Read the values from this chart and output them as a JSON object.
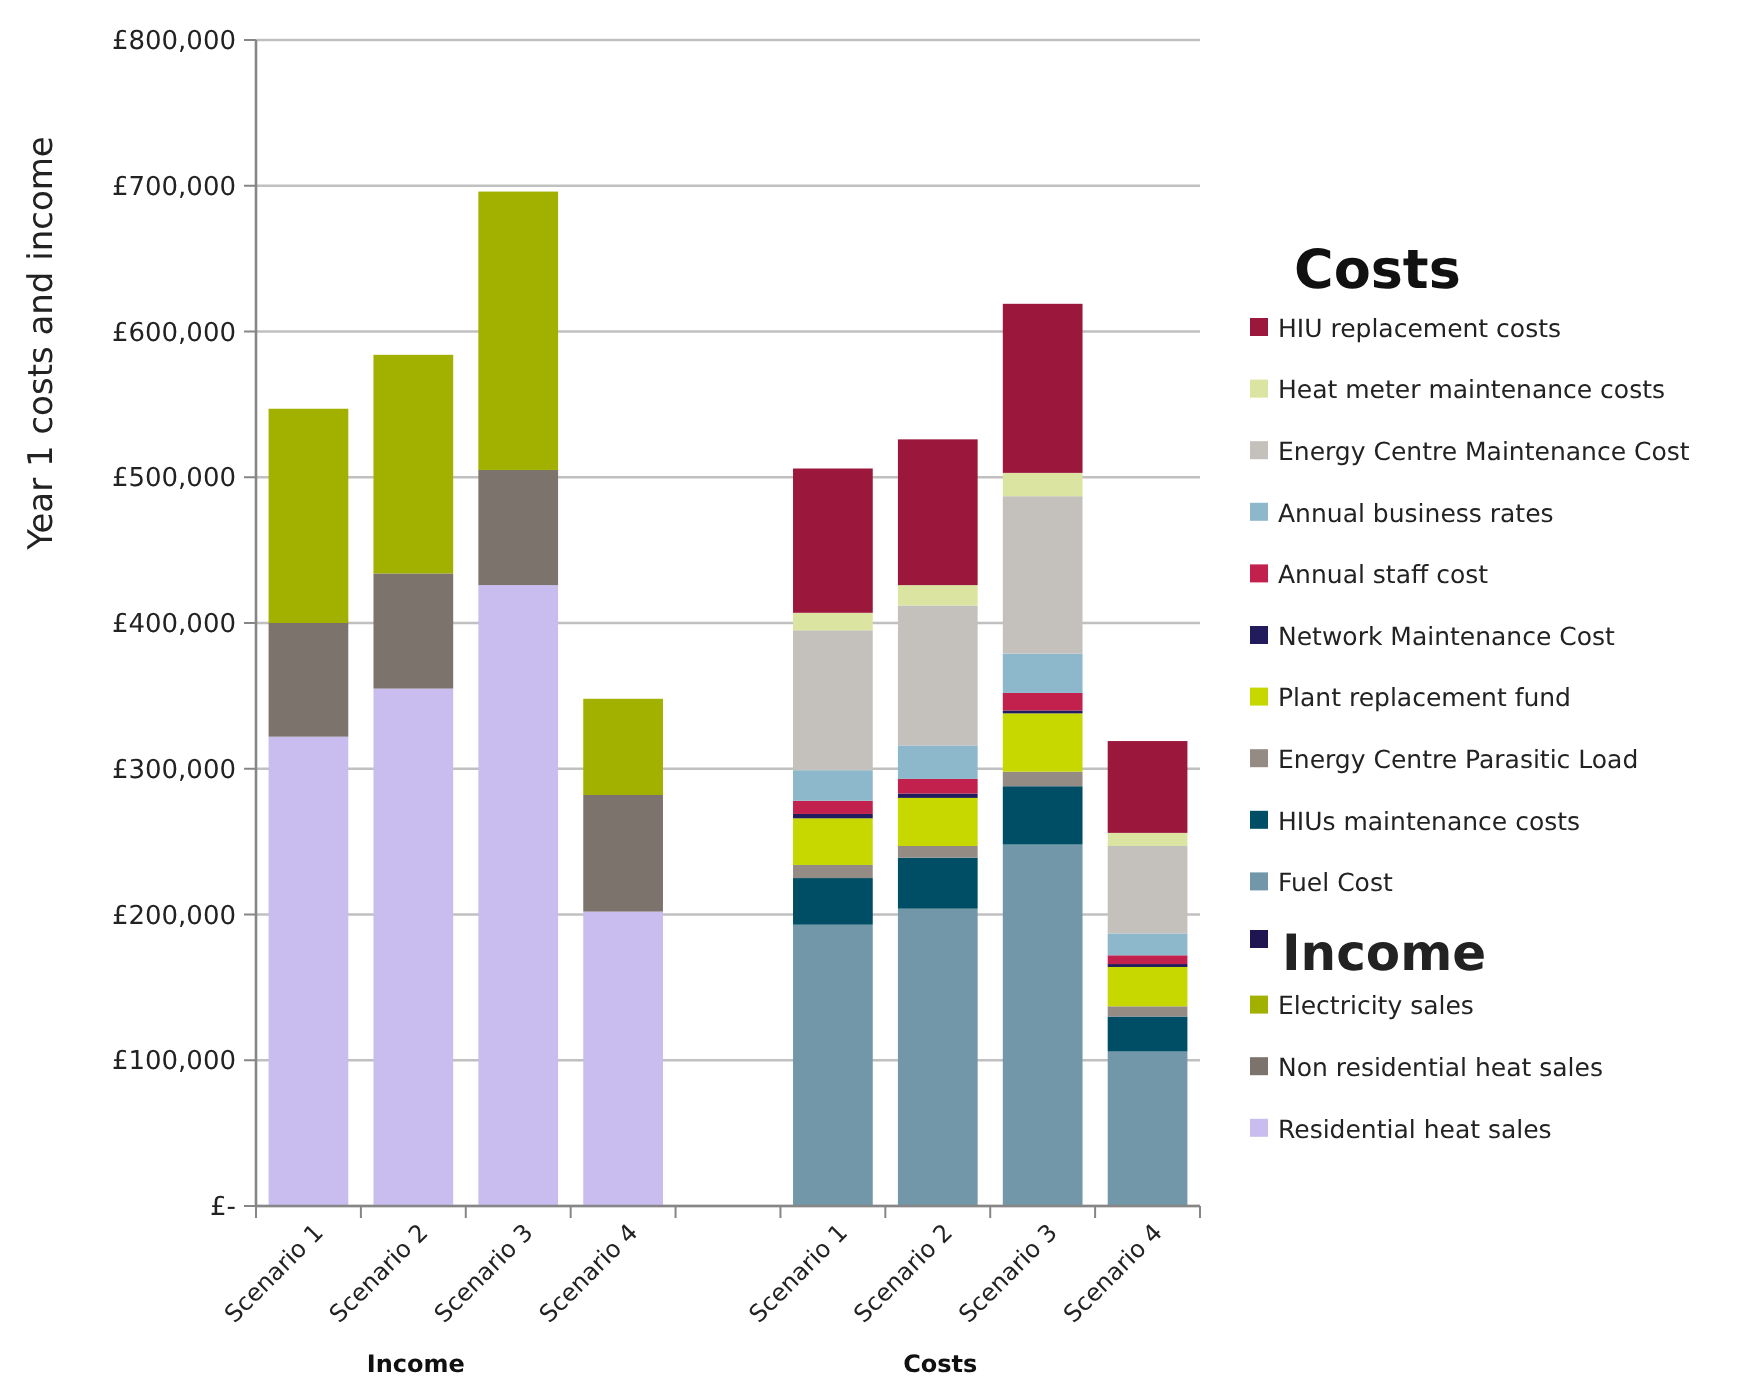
{
  "chart_data": {
    "type": "bar",
    "stacked": true,
    "ylabel": "Year 1 costs and income",
    "legend_title": "Costs",
    "legend": "right",
    "grid": "y",
    "categories": [
      "Scenario 1",
      "Scenario 2",
      "Scenario 3",
      "Scenario 4",
      null,
      "Scenario 1",
      "Scenario 2",
      "Scenario 3",
      "Scenario 4"
    ],
    "ylim": [
      0,
      800000
    ],
    "yticks": [
      {
        "value": 0,
        "label": "£-"
      },
      {
        "value": 100000,
        "label": "£100,000"
      },
      {
        "value": 200000,
        "label": "£200,000"
      },
      {
        "value": 300000,
        "label": "£300,000"
      },
      {
        "value": 400000,
        "label": "£400,000"
      },
      {
        "value": 500000,
        "label": "£500,000"
      },
      {
        "value": 600000,
        "label": "£600,000"
      },
      {
        "value": 700000,
        "label": "£700,000"
      },
      {
        "value": 800000,
        "label": "£800,000"
      }
    ],
    "annotations": [
      "Income",
      "Costs"
    ],
    "series": [
      {
        "name": "Residential heat sales",
        "color": "#c9bdf0",
        "values": [
          322000,
          355000,
          426000,
          202000,
          null,
          null,
          null,
          null,
          null
        ]
      },
      {
        "name": "Non residential heat sales",
        "color": "#7d736d",
        "values": [
          78000,
          79000,
          79000,
          80000,
          null,
          null,
          null,
          null,
          null
        ]
      },
      {
        "name": "Electricity sales",
        "color": "#a2b000",
        "values": [
          147000,
          150000,
          191000,
          66000,
          null,
          null,
          null,
          null,
          null
        ]
      },
      {
        "name": "Income",
        "color": "#1f1651",
        "values": [
          null,
          null,
          null,
          null,
          null,
          null,
          null,
          null,
          null
        ]
      },
      {
        "name": "Fuel Cost",
        "color": "#7297a8",
        "values": [
          null,
          null,
          null,
          null,
          null,
          193000,
          204000,
          248000,
          106000
        ]
      },
      {
        "name": "HIUs maintenance costs",
        "color": "#004d66",
        "values": [
          null,
          null,
          null,
          null,
          null,
          32000,
          35000,
          40000,
          24000
        ]
      },
      {
        "name": "Energy Centre Parasitic Load",
        "color": "#948b85",
        "values": [
          null,
          null,
          null,
          null,
          null,
          9000,
          8000,
          10000,
          7000
        ]
      },
      {
        "name": "Plant replacement fund",
        "color": "#c6d800",
        "values": [
          null,
          null,
          null,
          null,
          null,
          32000,
          33000,
          40000,
          27000
        ]
      },
      {
        "name": "Network Maintenance Cost",
        "color": "#221c5c",
        "values": [
          null,
          null,
          null,
          null,
          null,
          3000,
          3000,
          2000,
          2000
        ]
      },
      {
        "name": "Annual staff cost",
        "color": "#c2204d",
        "values": [
          null,
          null,
          null,
          null,
          null,
          9000,
          10000,
          12000,
          6000
        ]
      },
      {
        "name": "Annual business rates",
        "color": "#8db8cb",
        "values": [
          null,
          null,
          null,
          null,
          null,
          21000,
          23000,
          27000,
          15000
        ]
      },
      {
        "name": "Energy Centre Maintenance Cost",
        "color": "#c4c0bb",
        "values": [
          null,
          null,
          null,
          null,
          null,
          96000,
          96000,
          108000,
          60000
        ]
      },
      {
        "name": "Heat meter maintenance costs",
        "color": "#dbe4a0",
        "values": [
          null,
          null,
          null,
          null,
          null,
          12000,
          14000,
          16000,
          9000
        ]
      },
      {
        "name": "HIU replacement costs",
        "color": "#9b173b",
        "values": [
          null,
          null,
          null,
          null,
          null,
          99000,
          100000,
          116000,
          63000
        ]
      }
    ]
  }
}
